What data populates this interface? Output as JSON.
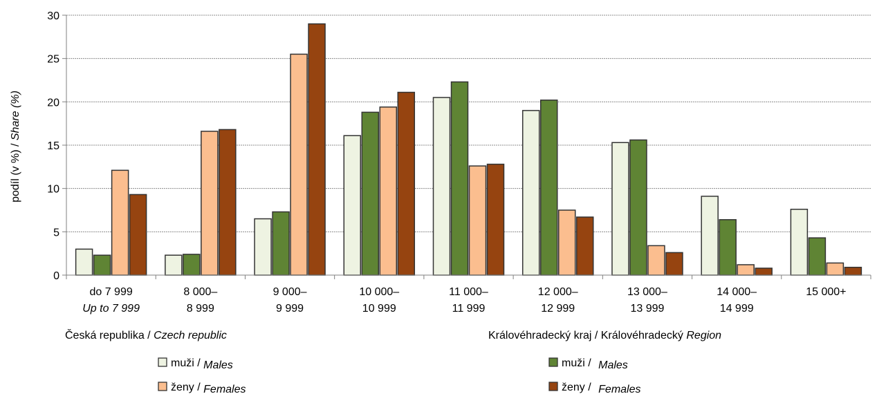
{
  "chart_data": {
    "type": "bar",
    "ylabel": {
      "main": "podíl  (v %) / ",
      "italic": "Share (%)"
    },
    "ylim": [
      0,
      30
    ],
    "yticks": [
      0,
      5,
      10,
      15,
      20,
      25,
      30
    ],
    "grid": true,
    "categories": [
      {
        "line1": "do 7 999",
        "line2": "Up to 7 999",
        "line2_italic": true
      },
      {
        "line1": "8 000–",
        "line2": "8 999",
        "line2_italic": false
      },
      {
        "line1": "9 000–",
        "line2": "9 999",
        "line2_italic": false
      },
      {
        "line1": "10 000–",
        "line2": "10 999",
        "line2_italic": false
      },
      {
        "line1": "11 000–",
        "line2": "11 999",
        "line2_italic": false
      },
      {
        "line1": "12 000–",
        "line2": "12 999",
        "line2_italic": false
      },
      {
        "line1": "13 000–",
        "line2": "13 999",
        "line2_italic": false
      },
      {
        "line1": "14 000–",
        "line2": "14 999",
        "line2_italic": false
      },
      {
        "line1": "15 000+",
        "line2": "",
        "line2_italic": false
      }
    ],
    "series": [
      {
        "name": "muži / Males",
        "group": "cz",
        "color": "#eef3e2",
        "values": [
          3.0,
          2.3,
          6.5,
          16.1,
          20.5,
          19.0,
          15.3,
          9.1,
          7.6
        ]
      },
      {
        "name": "muži / Males",
        "group": "kh",
        "color": "#5f8434",
        "values": [
          2.3,
          2.4,
          7.3,
          18.8,
          22.3,
          20.2,
          15.6,
          6.4,
          4.3
        ]
      },
      {
        "name": "ženy / Females",
        "group": "cz",
        "color": "#fbbe8f",
        "values": [
          12.1,
          16.6,
          25.5,
          19.4,
          12.6,
          7.5,
          3.4,
          1.2,
          1.4
        ]
      },
      {
        "name": "ženy / Females",
        "group": "kh",
        "color": "#964410",
        "values": [
          9.3,
          16.8,
          29.0,
          21.1,
          12.8,
          6.7,
          2.6,
          0.8,
          0.9
        ]
      }
    ],
    "groups": {
      "cz": {
        "main": "Česká republika  /  ",
        "italic": "Czech republic"
      },
      "kh": {
        "main": "Královéhradecký kraj  /  Královéhradecký  ",
        "italic": "Region"
      }
    },
    "legend": {
      "placement": "bottom",
      "items": [
        {
          "group": "cz",
          "main": "muži / ",
          "italic": "Males",
          "color": "#eef3e2"
        },
        {
          "group": "cz",
          "main": "ženy / ",
          "italic": "Females",
          "color": "#fbbe8f"
        },
        {
          "group": "kh",
          "main": "muži / ",
          "italic": "Males",
          "color": "#5f8434"
        },
        {
          "group": "kh",
          "main": "ženy / ",
          "italic": "Females",
          "color": "#964410"
        }
      ]
    }
  }
}
